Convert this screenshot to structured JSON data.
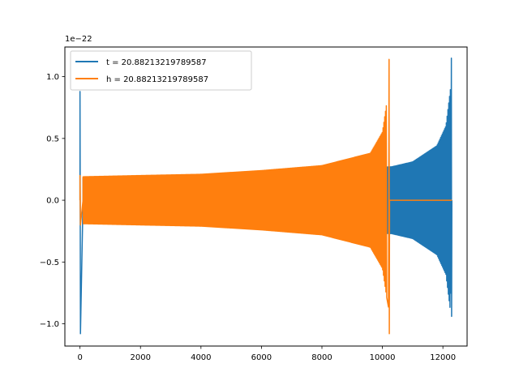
{
  "chart_data": {
    "type": "line",
    "title": "",
    "xlabel": "",
    "ylabel": "",
    "scale_label": "1e−22",
    "y_scale_factor": 1e-22,
    "xlim": [
      -500,
      12800
    ],
    "ylim": [
      -1.18,
      1.24
    ],
    "x_ticks": [
      0,
      2000,
      4000,
      6000,
      8000,
      10000,
      12000
    ],
    "x_tick_labels": [
      "0",
      "2000",
      "4000",
      "6000",
      "8000",
      "10000",
      "12000"
    ],
    "y_ticks": [
      -1.0,
      -0.5,
      0.0,
      0.5,
      1.0
    ],
    "y_tick_labels": [
      "−1.0",
      "−0.5",
      "0.0",
      "0.5",
      "1.0"
    ],
    "grid": false,
    "legend_position": "top-left",
    "series": [
      {
        "name": "t = 20.88213219789587",
        "color": "#1f77b4",
        "x_range": [
          0,
          12300
        ],
        "initial_spike": {
          "x": 0,
          "max": 0.88,
          "min": -1.08
        },
        "envelope": [
          {
            "x": 100,
            "amp": 0.18
          },
          {
            "x": 2000,
            "amp": 0.19
          },
          {
            "x": 4000,
            "amp": 0.2
          },
          {
            "x": 6000,
            "amp": 0.23
          },
          {
            "x": 8000,
            "amp": 0.26
          },
          {
            "x": 10300,
            "amp": 0.27
          },
          {
            "x": 11000,
            "amp": 0.31
          },
          {
            "x": 11800,
            "amp": 0.44
          },
          {
            "x": 12100,
            "amp": 0.6
          },
          {
            "x": 12250,
            "amp": 0.9
          }
        ],
        "final_spike": {
          "x": 12280,
          "max": 1.15,
          "min": -0.94
        }
      },
      {
        "name": "h = 20.88213219789587",
        "color": "#ff7f0e",
        "x_range": [
          0,
          12300
        ],
        "initial_spike": {
          "x": 0,
          "max": 0.2,
          "min": -0.2
        },
        "envelope": [
          {
            "x": 100,
            "amp": 0.19
          },
          {
            "x": 2000,
            "amp": 0.2
          },
          {
            "x": 4000,
            "amp": 0.21
          },
          {
            "x": 6000,
            "amp": 0.24
          },
          {
            "x": 8000,
            "amp": 0.28
          },
          {
            "x": 9600,
            "amp": 0.38
          },
          {
            "x": 10000,
            "amp": 0.55
          },
          {
            "x": 10150,
            "amp": 0.8
          }
        ],
        "final_spike": {
          "x": 10220,
          "max": 1.14,
          "min": -1.08
        },
        "flat_after": {
          "from": 10250,
          "to": 12300,
          "value": 0.0
        }
      }
    ]
  }
}
